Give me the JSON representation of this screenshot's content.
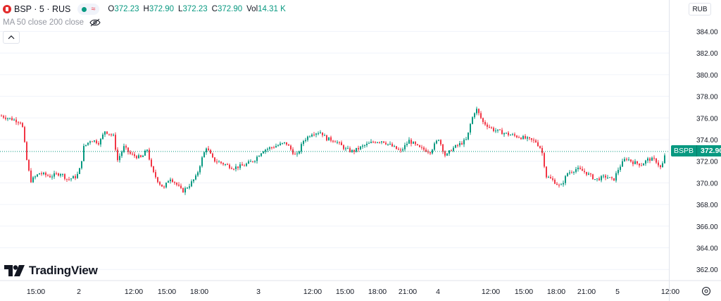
{
  "header": {
    "symbol_title": "BSP · 5 · RUS",
    "ohlc": [
      {
        "key": "O",
        "value": "372.23"
      },
      {
        "key": "H",
        "value": "372.90"
      },
      {
        "key": "L",
        "value": "372.23"
      },
      {
        "key": "C",
        "value": "372.90"
      },
      {
        "key": "Vol",
        "value": "14.31 K"
      }
    ],
    "indicator_label": "MA 50 close 200 close",
    "currency": "RUB"
  },
  "price_tag": {
    "symbol": "BSPB",
    "value": "372.90"
  },
  "logo_text": "TradingView",
  "colors": {
    "up": "#089981",
    "down": "#f23645",
    "grid": "#f0f3fa",
    "text": "#131722"
  },
  "chart_data": {
    "type": "candlestick",
    "y_axis": {
      "ticks": [
        "384.00",
        "382.00",
        "380.00",
        "378.00",
        "376.00",
        "374.00",
        "372.00",
        "370.00",
        "368.00",
        "366.00",
        "364.00",
        "362.00"
      ],
      "range": [
        361.0,
        385.6
      ]
    },
    "x_axis": {
      "ticks": [
        "15:00",
        "2",
        "12:00",
        "15:00",
        "18:00",
        "3",
        "12:00",
        "15:00",
        "18:00",
        "21:00",
        "4",
        "12:00",
        "15:00",
        "18:00",
        "21:00",
        "5",
        "12:00"
      ]
    },
    "last_price": 372.9,
    "anchors": [
      [
        0,
        376.2
      ],
      [
        30,
        375.6
      ],
      [
        38,
        371.6
      ],
      [
        43,
        370.2
      ],
      [
        55,
        370.9
      ],
      [
        70,
        370.6
      ],
      [
        85,
        370.9
      ],
      [
        95,
        370.3
      ],
      [
        108,
        370.6
      ],
      [
        113,
        371.4
      ],
      [
        118,
        373.3
      ],
      [
        128,
        374.0
      ],
      [
        140,
        373.7
      ],
      [
        148,
        374.8
      ],
      [
        160,
        374.3
      ],
      [
        166,
        372.1
      ],
      [
        175,
        373.3
      ],
      [
        185,
        372.6
      ],
      [
        200,
        372.3
      ],
      [
        208,
        373.1
      ],
      [
        215,
        371.1
      ],
      [
        225,
        370.0
      ],
      [
        232,
        369.5
      ],
      [
        240,
        370.5
      ],
      [
        248,
        370.0
      ],
      [
        258,
        369.2
      ],
      [
        268,
        369.8
      ],
      [
        278,
        370.6
      ],
      [
        285,
        372.1
      ],
      [
        292,
        373.3
      ],
      [
        302,
        372.1
      ],
      [
        315,
        371.8
      ],
      [
        330,
        371.4
      ],
      [
        345,
        371.6
      ],
      [
        360,
        372.1
      ],
      [
        372,
        373.0
      ],
      [
        390,
        373.4
      ],
      [
        405,
        373.7
      ],
      [
        412,
        373.1
      ],
      [
        420,
        372.4
      ],
      [
        430,
        373.9
      ],
      [
        442,
        374.6
      ],
      [
        455,
        374.7
      ],
      [
        462,
        374.1
      ],
      [
        475,
        373.9
      ],
      [
        490,
        373.1
      ],
      [
        500,
        372.9
      ],
      [
        515,
        373.4
      ],
      [
        530,
        373.8
      ],
      [
        542,
        373.9
      ],
      [
        555,
        373.4
      ],
      [
        568,
        372.9
      ],
      [
        580,
        373.9
      ],
      [
        595,
        373.2
      ],
      [
        610,
        372.9
      ],
      [
        622,
        374.1
      ],
      [
        632,
        372.4
      ],
      [
        640,
        373.1
      ],
      [
        655,
        373.7
      ],
      [
        662,
        374.0
      ],
      [
        668,
        375.7
      ],
      [
        675,
        376.9
      ],
      [
        685,
        375.6
      ],
      [
        700,
        374.9
      ],
      [
        720,
        374.5
      ],
      [
        740,
        374.2
      ],
      [
        760,
        373.8
      ],
      [
        768,
        373.1
      ],
      [
        775,
        370.6
      ],
      [
        785,
        370.2
      ],
      [
        795,
        369.6
      ],
      [
        805,
        370.9
      ],
      [
        818,
        371.3
      ],
      [
        830,
        371.0
      ],
      [
        845,
        370.3
      ],
      [
        860,
        370.6
      ],
      [
        870,
        370.2
      ],
      [
        878,
        371.4
      ],
      [
        888,
        372.3
      ],
      [
        898,
        371.9
      ],
      [
        910,
        371.7
      ],
      [
        920,
        372.2
      ],
      [
        930,
        372.1
      ],
      [
        938,
        371.3
      ],
      [
        945,
        372.9
      ]
    ]
  }
}
